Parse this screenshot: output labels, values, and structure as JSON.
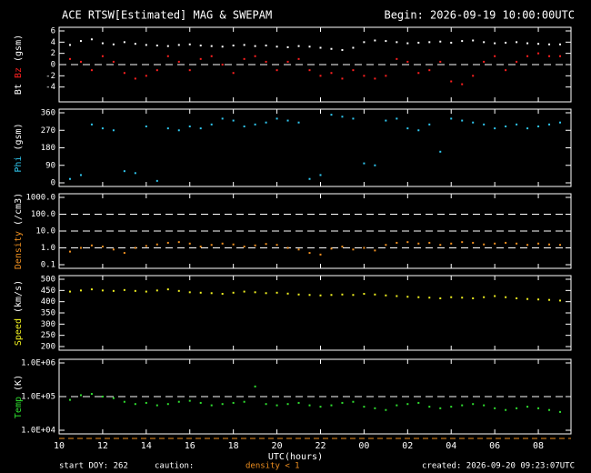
{
  "title": "ACE RTSW[Estimated] MAG & SWEPAM",
  "begin": "Begin: 2026-09-19 10:00:00UTC",
  "xlabel": "UTC(hours)",
  "start": "start DOY: 262",
  "caution": "caution:",
  "caution_note": "density < 1",
  "created": "created: 2026-09-20 09:23:07UTC",
  "xlim": [
    10,
    33.5
  ],
  "xticks": [
    10,
    12,
    14,
    16,
    18,
    20,
    22,
    {
      "value": 24,
      "label": "00"
    },
    {
      "value": 26,
      "label": "02"
    },
    {
      "value": 28,
      "label": "04"
    },
    {
      "value": 30,
      "label": "06"
    },
    {
      "value": 32,
      "label": "08"
    }
  ],
  "chart_data": [
    {
      "type": "scatter",
      "yunit": "(gsm)",
      "ylim": [
        -6,
        6
      ],
      "yticks": [
        -4,
        -2,
        0,
        2,
        4,
        6
      ],
      "dashed": [
        0
      ],
      "x": [
        10.5,
        11,
        11.5,
        12,
        12.5,
        13,
        13.5,
        14,
        14.5,
        15,
        15.5,
        16,
        16.5,
        17,
        17.5,
        18,
        18.5,
        19,
        19.5,
        20,
        20.5,
        21,
        21.5,
        22,
        22.5,
        23,
        23.5,
        24,
        24.5,
        25,
        25.5,
        26,
        26.5,
        27,
        27.5,
        28,
        28.5,
        29,
        29.5,
        30,
        30.5,
        31,
        31.5,
        32,
        32.5,
        33
      ],
      "series": [
        {
          "name": "Bt",
          "color": "#ffffff",
          "values": [
            3.5,
            4.2,
            4.5,
            3.8,
            3.6,
            4.0,
            3.7,
            3.5,
            3.4,
            3.3,
            3.5,
            3.6,
            3.4,
            3.3,
            3.2,
            3.4,
            3.5,
            3.3,
            3.4,
            3.2,
            3.1,
            3.3,
            3.2,
            3.0,
            2.8,
            2.6,
            3.0,
            4.0,
            4.3,
            4.2,
            4.0,
            3.8,
            3.9,
            4.0,
            4.1,
            3.9,
            4.2,
            4.3,
            4.0,
            3.8,
            3.9,
            4.0,
            3.8,
            3.7,
            3.6,
            3.6
          ]
        },
        {
          "name": "Bz",
          "color": "#ff2020",
          "values": [
            1.0,
            0.5,
            -1.0,
            1.5,
            0.5,
            -1.5,
            -2.5,
            -2.0,
            -1.0,
            1.5,
            0.5,
            -1.0,
            1.0,
            1.5,
            0.0,
            -1.5,
            1.0,
            1.5,
            0.5,
            -1.0,
            0.5,
            1.0,
            -1.0,
            -2.0,
            -1.5,
            -2.5,
            -1.0,
            -2.0,
            -2.5,
            -2.0,
            1.0,
            0.5,
            -1.5,
            -1.0,
            0.5,
            -3.0,
            -3.5,
            -2.0,
            0.5,
            1.5,
            -1.0,
            0.5,
            1.5,
            2.0,
            1.5,
            1.5
          ]
        }
      ]
    },
    {
      "type": "scatter",
      "yunit": "(gsm)",
      "ylim": [
        0,
        360
      ],
      "yticks": [
        0,
        90,
        180,
        270,
        360
      ],
      "x": [
        10.5,
        11,
        11.5,
        12,
        12.5,
        13,
        13.5,
        14,
        14.5,
        15,
        15.5,
        16,
        16.5,
        17,
        17.5,
        18,
        18.5,
        19,
        19.5,
        20,
        20.5,
        21,
        21.5,
        22,
        22.5,
        23,
        23.5,
        24,
        24.5,
        25,
        25.5,
        26,
        26.5,
        27,
        27.5,
        28,
        28.5,
        29,
        29.5,
        30,
        30.5,
        31,
        31.5,
        32,
        32.5,
        33
      ],
      "series": [
        {
          "name": "Phi",
          "color": "#30c8f0",
          "values": [
            20,
            40,
            300,
            280,
            270,
            60,
            50,
            290,
            10,
            280,
            270,
            290,
            280,
            300,
            330,
            320,
            290,
            300,
            310,
            330,
            320,
            310,
            20,
            40,
            350,
            340,
            330,
            100,
            90,
            320,
            330,
            280,
            270,
            300,
            160,
            330,
            320,
            310,
            300,
            280,
            290,
            300,
            280,
            290,
            300,
            310
          ]
        }
      ]
    },
    {
      "type": "scatter",
      "yunit": "(/cm3)",
      "log": true,
      "ylim": [
        0.1,
        1000
      ],
      "yticks": [
        {
          "value": 1000,
          "label": "1000.0"
        },
        {
          "value": 100,
          "label": "100.0"
        },
        {
          "value": 10,
          "label": "10.0"
        },
        {
          "value": 1,
          "label": "1.0"
        },
        0.1
      ],
      "dashed": [
        1,
        10,
        100
      ],
      "x": [
        10.5,
        11,
        11.5,
        12,
        12.5,
        13,
        13.5,
        14,
        14.5,
        15,
        15.5,
        16,
        16.5,
        17,
        17.5,
        18,
        18.5,
        19,
        19.5,
        20,
        20.5,
        21,
        21.5,
        22,
        22.5,
        23,
        23.5,
        24,
        24.5,
        25,
        25.5,
        26,
        26.5,
        27,
        27.5,
        28,
        28.5,
        29,
        29.5,
        30,
        30.5,
        31,
        31.5,
        32,
        32.5,
        33
      ],
      "series": [
        {
          "name": "Density",
          "color": "#f09020",
          "values": [
            0.6,
            1.0,
            1.4,
            1.2,
            0.8,
            0.5,
            1.0,
            1.3,
            1.6,
            2.0,
            2.2,
            1.8,
            1.2,
            1.5,
            1.8,
            1.6,
            1.2,
            1.4,
            1.7,
            1.5,
            1.0,
            0.8,
            0.5,
            0.4,
            0.9,
            1.2,
            0.8,
            1.0,
            0.7,
            1.5,
            2.0,
            2.2,
            1.8,
            2.0,
            1.5,
            1.8,
            2.2,
            2.0,
            1.6,
            1.8,
            2.0,
            1.8,
            1.5,
            1.8,
            1.6,
            1.5
          ]
        }
      ]
    },
    {
      "type": "scatter",
      "yunit": "(km/s)",
      "ylim": [
        200,
        500
      ],
      "yticks": [
        200,
        250,
        300,
        350,
        400,
        450,
        500
      ],
      "x": [
        10.5,
        11,
        11.5,
        12,
        12.5,
        13,
        13.5,
        14,
        14.5,
        15,
        15.5,
        16,
        16.5,
        17,
        17.5,
        18,
        18.5,
        19,
        19.5,
        20,
        20.5,
        21,
        21.5,
        22,
        22.5,
        23,
        23.5,
        24,
        24.5,
        25,
        25.5,
        26,
        26.5,
        27,
        27.5,
        28,
        28.5,
        29,
        29.5,
        30,
        30.5,
        31,
        31.5,
        32,
        32.5,
        33
      ],
      "series": [
        {
          "name": "Speed",
          "color": "#f0f020",
          "values": [
            445,
            450,
            455,
            450,
            448,
            452,
            448,
            445,
            450,
            455,
            448,
            442,
            440,
            438,
            435,
            440,
            445,
            442,
            438,
            440,
            436,
            432,
            430,
            428,
            430,
            432,
            430,
            435,
            432,
            428,
            425,
            422,
            420,
            418,
            415,
            420,
            418,
            415,
            420,
            425,
            420,
            415,
            412,
            410,
            408,
            405
          ]
        }
      ]
    },
    {
      "type": "scatter",
      "yunit": "(K)",
      "log": true,
      "ylim": [
        10000,
        1000000
      ],
      "yticks": [
        {
          "value": 1000000,
          "label": "1.0E+06"
        },
        {
          "value": 100000,
          "label": "1.0E+05"
        },
        {
          "value": 10000,
          "label": "1.0E+04"
        }
      ],
      "dashed": [
        100000
      ],
      "x": [
        10.5,
        11,
        11.5,
        12,
        12.5,
        13,
        13.5,
        14,
        14.5,
        15,
        15.5,
        16,
        16.5,
        17,
        17.5,
        18,
        18.5,
        19,
        19.5,
        20,
        20.5,
        21,
        21.5,
        22,
        22.5,
        23,
        23.5,
        24,
        24.5,
        25,
        25.5,
        26,
        26.5,
        27,
        27.5,
        28,
        28.5,
        29,
        29.5,
        30,
        30.5,
        31,
        31.5,
        32,
        32.5,
        33
      ],
      "series": [
        {
          "name": "Temp",
          "color": "#30e030",
          "values": [
            80000,
            110000,
            120000,
            100000,
            90000,
            70000,
            60000,
            65000,
            55000,
            60000,
            70000,
            75000,
            65000,
            55000,
            60000,
            65000,
            70000,
            200000,
            60000,
            55000,
            60000,
            65000,
            55000,
            50000,
            55000,
            65000,
            70000,
            50000,
            45000,
            40000,
            55000,
            60000,
            65000,
            50000,
            45000,
            50000,
            55000,
            60000,
            55000,
            45000,
            40000,
            45000,
            50000,
            45000,
            40000,
            35000
          ]
        }
      ]
    }
  ]
}
